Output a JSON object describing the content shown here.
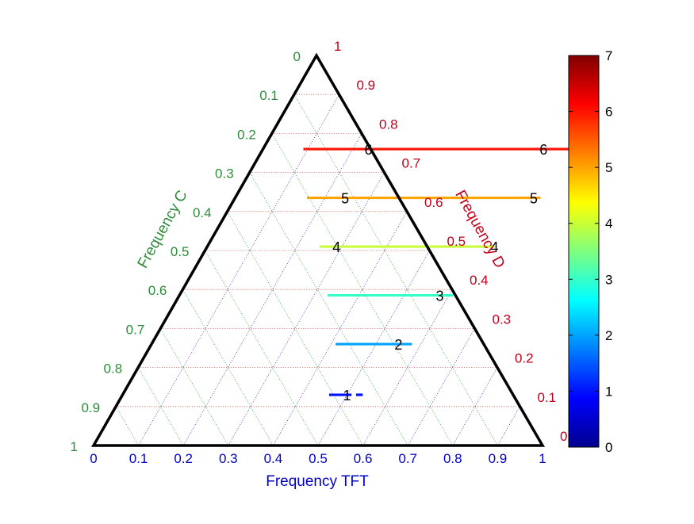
{
  "chart_data": {
    "type": "ternary",
    "axes": {
      "bottom": {
        "label": "Frequency TFT",
        "color": "#0000CC",
        "ticks": [
          "0",
          "0.1",
          "0.2",
          "0.3",
          "0.4",
          "0.5",
          "0.6",
          "0.7",
          "0.8",
          "0.9",
          "1"
        ]
      },
      "left": {
        "label": "Frequency C",
        "color": "#2E8B3C",
        "ticks": [
          "0",
          "0.1",
          "0.2",
          "0.3",
          "0.4",
          "0.5",
          "0.6",
          "0.7",
          "0.8",
          "0.9",
          "1"
        ]
      },
      "right": {
        "label": "Frequency D",
        "color": "#C0001A",
        "ticks": [
          "0",
          "0.1",
          "0.2",
          "0.3",
          "0.4",
          "0.5",
          "0.6",
          "0.7",
          "0.8",
          "0.9",
          "1"
        ]
      }
    },
    "grid": true,
    "contours": [
      {
        "level": 1,
        "C": 0.13,
        "segments": [
          [
            0.46,
            0.51
          ],
          [
            0.52,
            0.535
          ]
        ],
        "labels": [
          {
            "text": "1",
            "tft": 0.5
          }
        ]
      },
      {
        "level": 2,
        "C": 0.26,
        "segments": [
          [
            0.41,
            0.58
          ]
        ],
        "labels": [
          {
            "text": "2",
            "tft": 0.55
          }
        ]
      },
      {
        "level": 3,
        "C": 0.385,
        "segments": [
          [
            0.33,
            0.61
          ]
        ],
        "labels": [
          {
            "text": "3",
            "tft": 0.58
          }
        ]
      },
      {
        "level": 4,
        "C": 0.51,
        "segments": [
          [
            0.25,
            0.64
          ]
        ],
        "labels": [
          {
            "text": "4",
            "tft": 0.288
          },
          {
            "text": "4",
            "tft": 0.64
          }
        ]
      },
      {
        "level": 5,
        "C": 0.635,
        "segments": [
          [
            0.16,
            0.68
          ]
        ],
        "labels": [
          {
            "text": "5",
            "tft": 0.245
          },
          {
            "text": "5",
            "tft": 0.665
          }
        ]
      },
      {
        "level": 6,
        "C": 0.76,
        "segments": [
          [
            0.09,
            0.73
          ]
        ],
        "labels": [
          {
            "text": "6",
            "tft": 0.235
          },
          {
            "text": "6",
            "tft": 0.625
          }
        ]
      }
    ],
    "colorbar": {
      "colormap": "jet",
      "range": [
        0,
        7
      ],
      "ticks": [
        "0",
        "1",
        "2",
        "3",
        "4",
        "5",
        "6",
        "7"
      ]
    }
  }
}
